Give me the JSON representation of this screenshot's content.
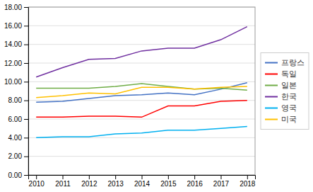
{
  "chart_data": {
    "type": "line",
    "x": [
      2010,
      2011,
      2012,
      2013,
      2014,
      2015,
      2016,
      2017,
      2018
    ],
    "xlim": [
      2009.7,
      2018.3
    ],
    "xticks": [
      2010,
      2011,
      2012,
      2013,
      2014,
      2015,
      2016,
      2017,
      2018
    ],
    "ylim": [
      0,
      18
    ],
    "yticks": [
      {
        "value": 0,
        "label": "0.00"
      },
      {
        "value": 2,
        "label": "2.00"
      },
      {
        "value": 4,
        "label": "4.00"
      },
      {
        "value": 6,
        "label": "6.00"
      },
      {
        "value": 8,
        "label": "8.00"
      },
      {
        "value": 10,
        "label": "10.00"
      },
      {
        "value": 12,
        "label": "12.00"
      },
      {
        "value": 14,
        "label": "14.00"
      },
      {
        "value": 16,
        "label": "16.00"
      },
      {
        "value": 18,
        "label": "18.00"
      }
    ],
    "grid": true,
    "legend": "right",
    "series": [
      {
        "name": "프랑스",
        "color": "#4472C4",
        "values": [
          7.8,
          7.9,
          8.2,
          8.5,
          8.6,
          8.8,
          8.6,
          9.2,
          9.9
        ]
      },
      {
        "name": "독일",
        "color": "#FF0000",
        "values": [
          6.2,
          6.2,
          6.3,
          6.3,
          6.2,
          7.4,
          7.4,
          7.9,
          8.0
        ]
      },
      {
        "name": "일본",
        "color": "#70AD47",
        "values": [
          9.3,
          9.3,
          9.3,
          9.5,
          9.8,
          9.5,
          9.2,
          9.3,
          9.1
        ]
      },
      {
        "name": "한국",
        "color": "#7030A0",
        "values": [
          10.5,
          11.5,
          12.4,
          12.5,
          13.3,
          13.6,
          13.6,
          14.5,
          15.9
        ]
      },
      {
        "name": "영국",
        "color": "#00B0F0",
        "values": [
          4.0,
          4.1,
          4.1,
          4.4,
          4.5,
          4.8,
          4.8,
          5.0,
          5.2
        ]
      },
      {
        "name": "미국",
        "color": "#FFC000",
        "values": [
          8.3,
          8.5,
          8.8,
          8.7,
          9.4,
          9.4,
          9.2,
          9.4,
          9.5
        ]
      }
    ]
  }
}
